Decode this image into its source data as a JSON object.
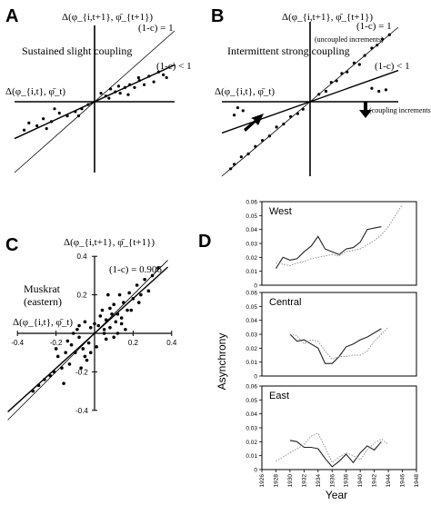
{
  "panels": {
    "A": {
      "letter": "A",
      "y_axis_label": "Δ(φ_{i,t+1}, φ̄_{t+1})",
      "x_axis_label": "Δ(φ_{i,t}, φ̄_t)",
      "text": "Sustained slight coupling",
      "line_label_1": "(1-c) = 1",
      "line_label_2": "(1-c) < 1"
    },
    "B": {
      "letter": "B",
      "y_axis_label": "Δ(φ_{i,t+1}, φ̄_{t+1})",
      "x_axis_label": "Δ(φ_{i,t}, φ̄_t)",
      "text": "Intermittent strong coupling",
      "line_label_1": "(1-c) = 1",
      "line_label_2": "(1-c) < 1",
      "annotation_upper": "(uncoupled increments)",
      "annotation_lower": "(coupling increments)"
    },
    "C": {
      "letter": "C",
      "y_axis_label": "Δ(φ_{i,t+1}, φ̄_{t+1})",
      "x_axis_label": "Δ(φ_{i,t}, φ̄_t)",
      "text_line_1": "Muskrat",
      "text_line_2": "(eastern)",
      "line_label": "(1-c) = 0.906"
    },
    "D": {
      "letter": "D",
      "ylabel": "Asynchrony",
      "xlabel": "Year",
      "subplot_titles": [
        "West",
        "Central",
        "East"
      ]
    }
  },
  "chart_data": [
    {
      "type": "scatter",
      "panel": "A",
      "lines": [
        {
          "label": "(1-c) = 1",
          "slope": 1.0
        },
        {
          "label": "(1-c) < 1",
          "slope": 0.52
        }
      ],
      "points_x": [
        0.08,
        0.14,
        0.2,
        0.26,
        0.32,
        0.38,
        0.44,
        0.5,
        0.56,
        0.62,
        0.68,
        0.74,
        0.8,
        0.86,
        0.9,
        0.18,
        0.3,
        0.42,
        0.55,
        -0.08,
        -0.16,
        -0.24,
        -0.34,
        -0.44,
        -0.54,
        -0.64,
        -0.72,
        -0.82,
        -0.88,
        -0.2,
        -0.5,
        -0.6
      ],
      "points_y": [
        0.12,
        0.08,
        0.18,
        0.14,
        0.12,
        0.2,
        0.24,
        0.2,
        0.3,
        0.24,
        0.36,
        0.28,
        0.42,
        0.38,
        0.34,
        0.05,
        0.22,
        0.1,
        0.34,
        -0.04,
        -0.1,
        -0.14,
        -0.2,
        -0.16,
        -0.28,
        -0.24,
        -0.34,
        -0.3,
        -0.4,
        -0.2,
        -0.1,
        -0.38
      ]
    },
    {
      "type": "scatter",
      "panel": "B",
      "lines": [
        {
          "label": "(1-c) = 1",
          "slope": 1.0
        },
        {
          "label": "(1-c) < 1",
          "slope": 0.42
        }
      ],
      "points_x": [
        0.1,
        0.18,
        0.24,
        0.3,
        0.36,
        0.42,
        0.5,
        0.56,
        0.62,
        0.7,
        0.76,
        0.82,
        0.9,
        0.7,
        0.78,
        0.86,
        -0.08,
        -0.14,
        -0.22,
        -0.3,
        -0.38,
        -0.46,
        -0.54,
        -0.62,
        -0.7,
        -0.78,
        -0.86,
        -0.9,
        -0.76,
        -0.82,
        -0.86
      ],
      "points_y": [
        0.1,
        0.14,
        0.26,
        0.28,
        0.38,
        0.4,
        0.52,
        0.5,
        0.62,
        0.72,
        0.76,
        0.84,
        0.9,
        0.18,
        0.14,
        0.16,
        -0.1,
        -0.16,
        -0.2,
        -0.3,
        -0.34,
        -0.46,
        -0.52,
        -0.6,
        -0.7,
        -0.74,
        -0.84,
        -0.9,
        -0.12,
        -0.08,
        -0.18
      ]
    },
    {
      "type": "scatter",
      "panel": "C",
      "title": "Muskrat (eastern)",
      "xlim": [
        -0.4,
        0.4
      ],
      "ylim": [
        -0.4,
        0.4
      ],
      "x_ticks": [
        "-0.4",
        "-0.2",
        "0.2",
        "0.4"
      ],
      "y_ticks": [
        "0.4",
        "0.2",
        "-0.2",
        "-0.4"
      ],
      "lines": [
        {
          "label": "(1-c) = 1",
          "slope": 1.0
        },
        {
          "label": "(1-c) = 0.906",
          "slope": 0.906
        }
      ],
      "points_x": [
        0.02,
        0.04,
        0.05,
        0.06,
        0.08,
        0.09,
        0.1,
        0.12,
        0.13,
        0.14,
        0.15,
        0.17,
        0.18,
        0.2,
        0.22,
        0.24,
        0.26,
        0.28,
        0.3,
        0.33,
        0.12,
        0.16,
        0.06,
        0.03,
        0.08,
        0.1,
        0.14,
        0.05,
        -0.02,
        -0.03,
        -0.05,
        -0.06,
        -0.08,
        -0.1,
        -0.12,
        -0.13,
        -0.15,
        -0.17,
        -0.19,
        -0.21,
        -0.23,
        -0.26,
        -0.29,
        -0.32,
        -0.05,
        -0.08,
        -0.02,
        -0.04,
        -0.11,
        -0.14,
        -0.16,
        0.0,
        0.01,
        0.07,
        0.11,
        -0.07,
        -0.09,
        0.19,
        0.23,
        -0.2
      ],
      "points_y": [
        0.04,
        0.12,
        0.02,
        0.07,
        0.03,
        0.1,
        0.15,
        0.1,
        0.2,
        0.08,
        0.16,
        0.12,
        0.21,
        0.18,
        0.25,
        0.2,
        0.28,
        0.22,
        0.3,
        0.34,
        0.0,
        0.02,
        -0.03,
        0.09,
        0.13,
        -0.02,
        0.05,
        0.0,
        0.03,
        -0.05,
        0.06,
        -0.08,
        -0.02,
        -0.1,
        -0.06,
        -0.16,
        -0.1,
        -0.18,
        -0.12,
        -0.2,
        -0.22,
        -0.24,
        -0.27,
        -0.3,
        -0.12,
        0.04,
        -0.1,
        -0.14,
        0.0,
        -0.04,
        -0.26,
        0.05,
        -0.07,
        0.2,
        0.06,
        -0.18,
        0.02,
        0.12,
        0.16,
        -0.08
      ]
    },
    {
      "type": "line",
      "panel": "D",
      "ylabel": "Asynchrony",
      "xlabel": "Year",
      "xlim": [
        1926,
        1948
      ],
      "x_ticks": [
        "1926",
        "1928",
        "1930",
        "1932",
        "1934",
        "1936",
        "1938",
        "1940",
        "1942",
        "1944",
        "1946",
        "1948"
      ],
      "y_ticks": [
        "0",
        "0.01",
        "0.02",
        "0.03",
        "0.04",
        "0.05",
        "0.06"
      ],
      "ylim": [
        0,
        0.06
      ],
      "subplots": [
        {
          "title": "West",
          "series": [
            {
              "style": "solid",
              "x": [
                1928,
                1929,
                1930,
                1931,
                1932,
                1933,
                1934,
                1935,
                1936,
                1937,
                1938,
                1939,
                1940,
                1941,
                1942,
                1943
              ],
              "y": [
                0.012,
                0.02,
                0.018,
                0.019,
                0.024,
                0.028,
                0.035,
                0.026,
                0.024,
                0.022,
                0.026,
                0.027,
                0.031,
                0.04,
                0.041,
                0.042
              ]
            },
            {
              "style": "dotted",
              "x": [
                1928,
                1929,
                1930,
                1931,
                1932,
                1933,
                1934,
                1935,
                1936,
                1937,
                1938,
                1939,
                1940,
                1941,
                1942,
                1943,
                1944,
                1945,
                1946
              ],
              "y": [
                0.016,
                0.015,
                0.014,
                0.016,
                0.017,
                0.019,
                0.02,
                0.021,
                0.022,
                0.021,
                0.024,
                0.025,
                0.026,
                0.029,
                0.032,
                0.036,
                0.042,
                0.05,
                0.058
              ]
            }
          ]
        },
        {
          "title": "Central",
          "series": [
            {
              "style": "solid",
              "x": [
                1930,
                1931,
                1932,
                1933,
                1934,
                1935,
                1936,
                1937,
                1938,
                1939,
                1940,
                1941,
                1942,
                1943
              ],
              "y": [
                0.03,
                0.025,
                0.026,
                0.023,
                0.02,
                0.009,
                0.009,
                0.014,
                0.021,
                0.023,
                0.026,
                0.028,
                0.031,
                0.034
              ]
            },
            {
              "style": "dotted",
              "x": [
                1930,
                1931,
                1932,
                1933,
                1934,
                1935,
                1936,
                1937,
                1938,
                1939,
                1940,
                1941,
                1942,
                1943,
                1944
              ],
              "y": [
                0.03,
                0.029,
                0.023,
                0.026,
                0.025,
                0.018,
                0.012,
                0.014,
                0.014,
                0.015,
                0.015,
                0.018,
                0.025,
                0.03,
                0.035
              ]
            }
          ]
        },
        {
          "title": "East",
          "series": [
            {
              "style": "solid",
              "x": [
                1930,
                1931,
                1932,
                1933,
                1934,
                1935,
                1936,
                1937,
                1938,
                1939,
                1940,
                1941,
                1942,
                1943
              ],
              "y": [
                0.021,
                0.02,
                0.016,
                0.016,
                0.015,
                0.008,
                0.002,
                0.006,
                0.011,
                0.005,
                0.012,
                0.017,
                0.014,
                0.02
              ]
            },
            {
              "style": "dotted",
              "x": [
                1928,
                1929,
                1930,
                1931,
                1932,
                1933,
                1934,
                1935,
                1936,
                1937,
                1938,
                1939,
                1940,
                1941,
                1942,
                1943,
                1944
              ],
              "y": [
                0.006,
                0.009,
                0.012,
                0.015,
                0.018,
                0.024,
                0.026,
                0.016,
                0.005,
                0.009,
                0.012,
                0.01,
                0.007,
                0.014,
                0.019,
                0.022,
                0.018
              ]
            }
          ]
        }
      ]
    }
  ]
}
